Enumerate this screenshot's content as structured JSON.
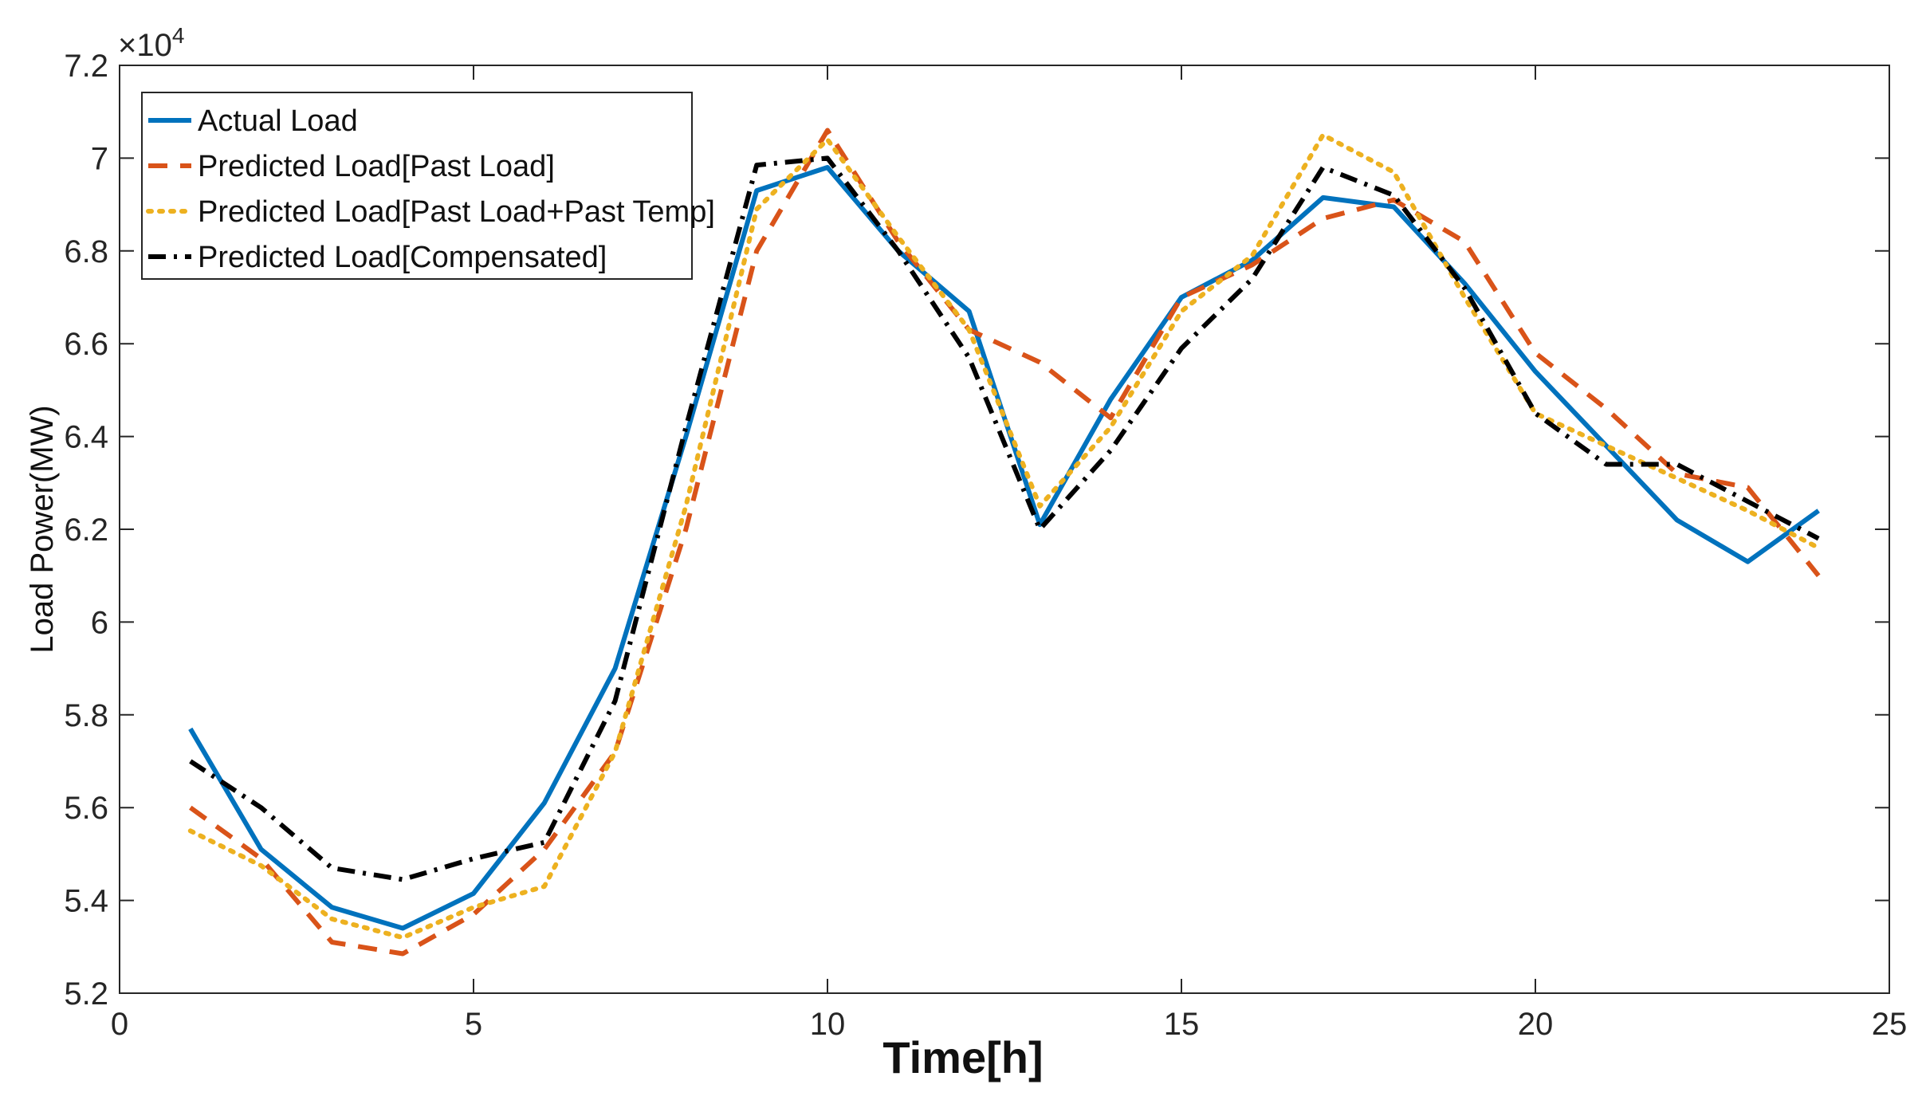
{
  "chart_data": {
    "type": "line",
    "title": "",
    "xlabel": "Time[h]",
    "ylabel": "Load Power(MW)",
    "xlim": [
      0,
      25
    ],
    "ylim": [
      5.2,
      7.2
    ],
    "y_exponent_label": "×10",
    "y_exponent_power": "4",
    "xticks": [
      0,
      5,
      10,
      15,
      20,
      25
    ],
    "xtick_labels": [
      "0",
      "5",
      "10",
      "15",
      "20",
      "25"
    ],
    "yticks": [
      5.2,
      5.4,
      5.6,
      5.8,
      6.0,
      6.2,
      6.4,
      6.6,
      6.8,
      7.0,
      7.2
    ],
    "ytick_labels": [
      "5.2",
      "5.4",
      "5.6",
      "5.8",
      "6",
      "6.2",
      "6.4",
      "6.6",
      "6.8",
      "7",
      "7.2"
    ],
    "grid": false,
    "legend_position": "top-left",
    "x": [
      1,
      2,
      3,
      4,
      5,
      6,
      7,
      8,
      9,
      10,
      11,
      12,
      13,
      14,
      15,
      16,
      17,
      18,
      19,
      20,
      21,
      22,
      23,
      24
    ],
    "series": [
      {
        "name": "Actual Load",
        "color": "#0072BD",
        "style": "solid",
        "values": [
          5.77,
          5.51,
          5.385,
          5.34,
          5.415,
          5.61,
          5.9,
          6.4,
          6.93,
          6.98,
          6.8,
          6.67,
          6.21,
          6.48,
          6.7,
          6.78,
          6.915,
          6.895,
          6.73,
          6.54,
          6.38,
          6.22,
          6.13,
          6.24
        ]
      },
      {
        "name": "Predicted Load[Past Load]",
        "color": "#D95319",
        "style": "dashed",
        "values": [
          5.6,
          5.49,
          5.31,
          5.285,
          5.37,
          5.51,
          5.72,
          6.2,
          6.8,
          7.06,
          6.82,
          6.63,
          6.56,
          6.44,
          6.7,
          6.77,
          6.87,
          6.91,
          6.82,
          6.58,
          6.46,
          6.32,
          6.29,
          6.1
        ]
      },
      {
        "name": "Predicted Load[Past Load+Past Temp]",
        "color": "#EDB120",
        "style": "dotted",
        "values": [
          5.55,
          5.475,
          5.36,
          5.32,
          5.385,
          5.43,
          5.72,
          6.25,
          6.89,
          7.04,
          6.83,
          6.63,
          6.25,
          6.42,
          6.67,
          6.79,
          7.05,
          6.97,
          6.7,
          6.45,
          6.38,
          6.31,
          6.24,
          6.16
        ]
      },
      {
        "name": "Predicted Load[Compensated]",
        "color": "#000000",
        "style": "dashdot",
        "values": [
          5.7,
          5.6,
          5.47,
          5.445,
          5.49,
          5.525,
          5.83,
          6.42,
          6.985,
          7.0,
          6.8,
          6.57,
          6.2,
          6.37,
          6.59,
          6.74,
          6.98,
          6.92,
          6.72,
          6.45,
          6.34,
          6.34,
          6.26,
          6.18
        ]
      }
    ]
  }
}
